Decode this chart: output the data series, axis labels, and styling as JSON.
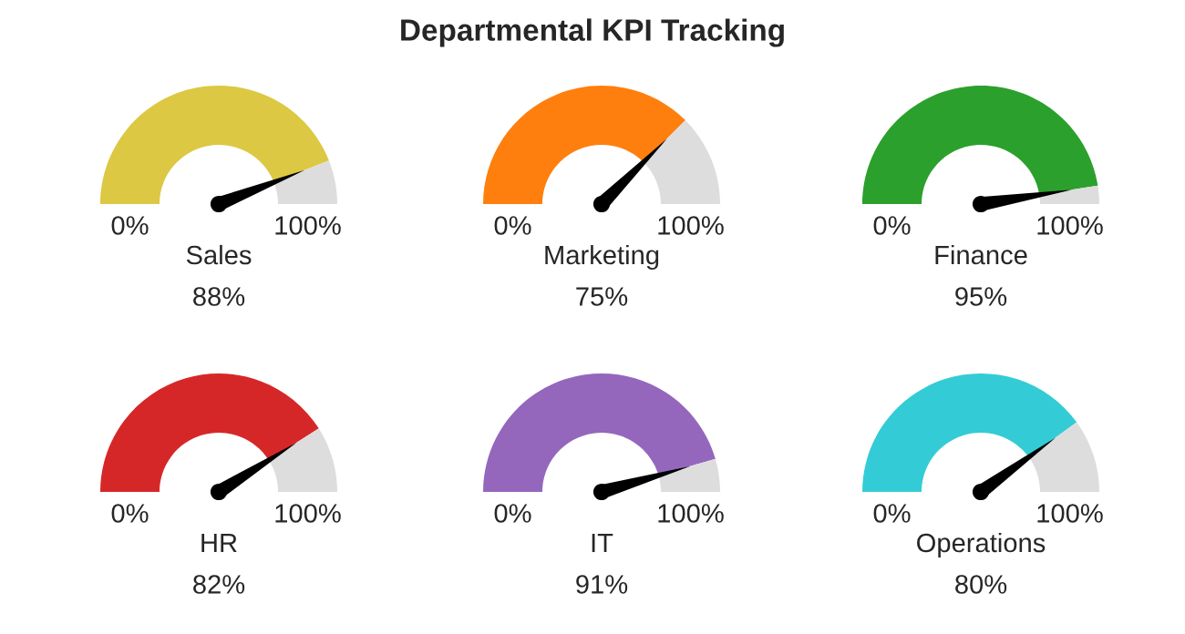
{
  "chart_data": [
    {
      "type": "other",
      "title": "Departmental KPI Tracking"
    },
    {
      "type": "donut",
      "xlabel": "Sales",
      "categories": [
        null,
        null
      ],
      "values": [
        88,
        12
      ],
      "colors": [
        "#dcc842",
        "#dddddd"
      ],
      "annotations": [
        "0%",
        "100%",
        "88%"
      ]
    },
    {
      "type": "donut",
      "xlabel": "Marketing",
      "categories": [
        null,
        null
      ],
      "values": [
        75,
        25
      ],
      "colors": [
        "#ff7f0e",
        "#dddddd"
      ],
      "annotations": [
        "0%",
        "100%",
        "75%"
      ]
    },
    {
      "type": "donut",
      "xlabel": "Finance",
      "categories": [
        null,
        null
      ],
      "values": [
        95,
        5
      ],
      "colors": [
        "#2ca02c",
        "#dddddd"
      ],
      "annotations": [
        "0%",
        "100%",
        "95%"
      ]
    },
    {
      "type": "donut",
      "xlabel": "HR",
      "categories": [
        null,
        null
      ],
      "values": [
        82,
        18
      ],
      "colors": [
        "#d62728",
        "#dddddd"
      ],
      "annotations": [
        "0%",
        "100%",
        "82%"
      ]
    },
    {
      "type": "donut",
      "xlabel": "IT",
      "categories": [
        null,
        null
      ],
      "values": [
        91,
        9
      ],
      "colors": [
        "#9467bd",
        "#dddddd"
      ],
      "annotations": [
        "0%",
        "100%",
        "91%"
      ]
    },
    {
      "type": "donut",
      "xlabel": "Operations",
      "categories": [
        null,
        null
      ],
      "values": [
        80,
        20
      ],
      "colors": [
        "#33ccd6",
        "#dddddd"
      ],
      "annotations": [
        "0%",
        "100%",
        "80%"
      ]
    }
  ]
}
